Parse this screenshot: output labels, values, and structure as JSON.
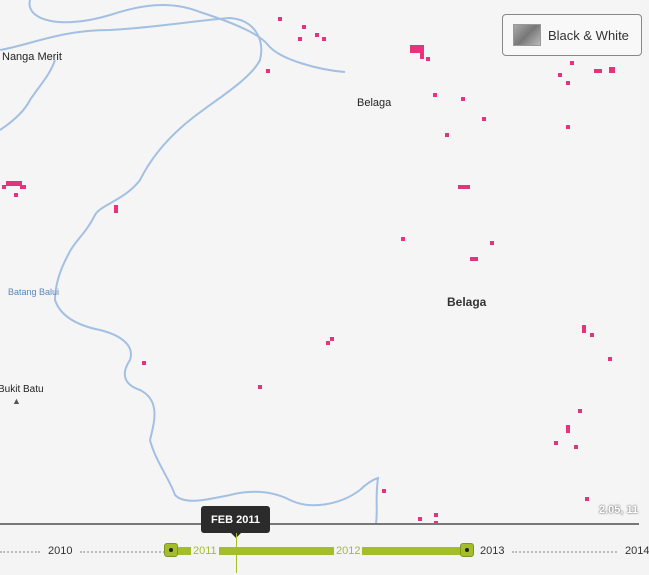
{
  "map": {
    "labels": {
      "nanga_merit": "Nanga Merit",
      "belaga_small": "Belaga",
      "belaga_large": "Belaga",
      "batang_balui": "Batang Balui",
      "bukit_batu": "Bukit Batu"
    },
    "coordinates": "2.05, 11",
    "river_color": "#a3c0e3",
    "alert_color": "#e8327d"
  },
  "basemap_toggle": {
    "label": "Black & White"
  },
  "timeline": {
    "years": [
      "2010",
      "2011",
      "2012",
      "2013",
      "2014"
    ],
    "selected_range": [
      "2011",
      "2013"
    ],
    "current": "FEB 2011",
    "accent_color": "#a4bd2a"
  }
}
